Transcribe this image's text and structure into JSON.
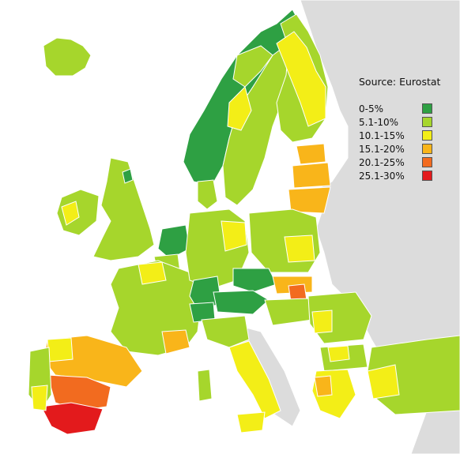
{
  "map": {
    "source": "Source: Eurostat",
    "legend": [
      {
        "label": "0-5%",
        "color": "#2ea043"
      },
      {
        "label": "5.1-10%",
        "color": "#a6d62c"
      },
      {
        "label": "10.1-15%",
        "color": "#f3ee17"
      },
      {
        "label": "15.1-20%",
        "color": "#f9b51a"
      },
      {
        "label": "20.1-25%",
        "color": "#f26b1f"
      },
      {
        "label": "25.1-30%",
        "color": "#e31a1c"
      }
    ],
    "background_land_color": "#dcdcdc",
    "sea_color": "#ffffff"
  }
}
